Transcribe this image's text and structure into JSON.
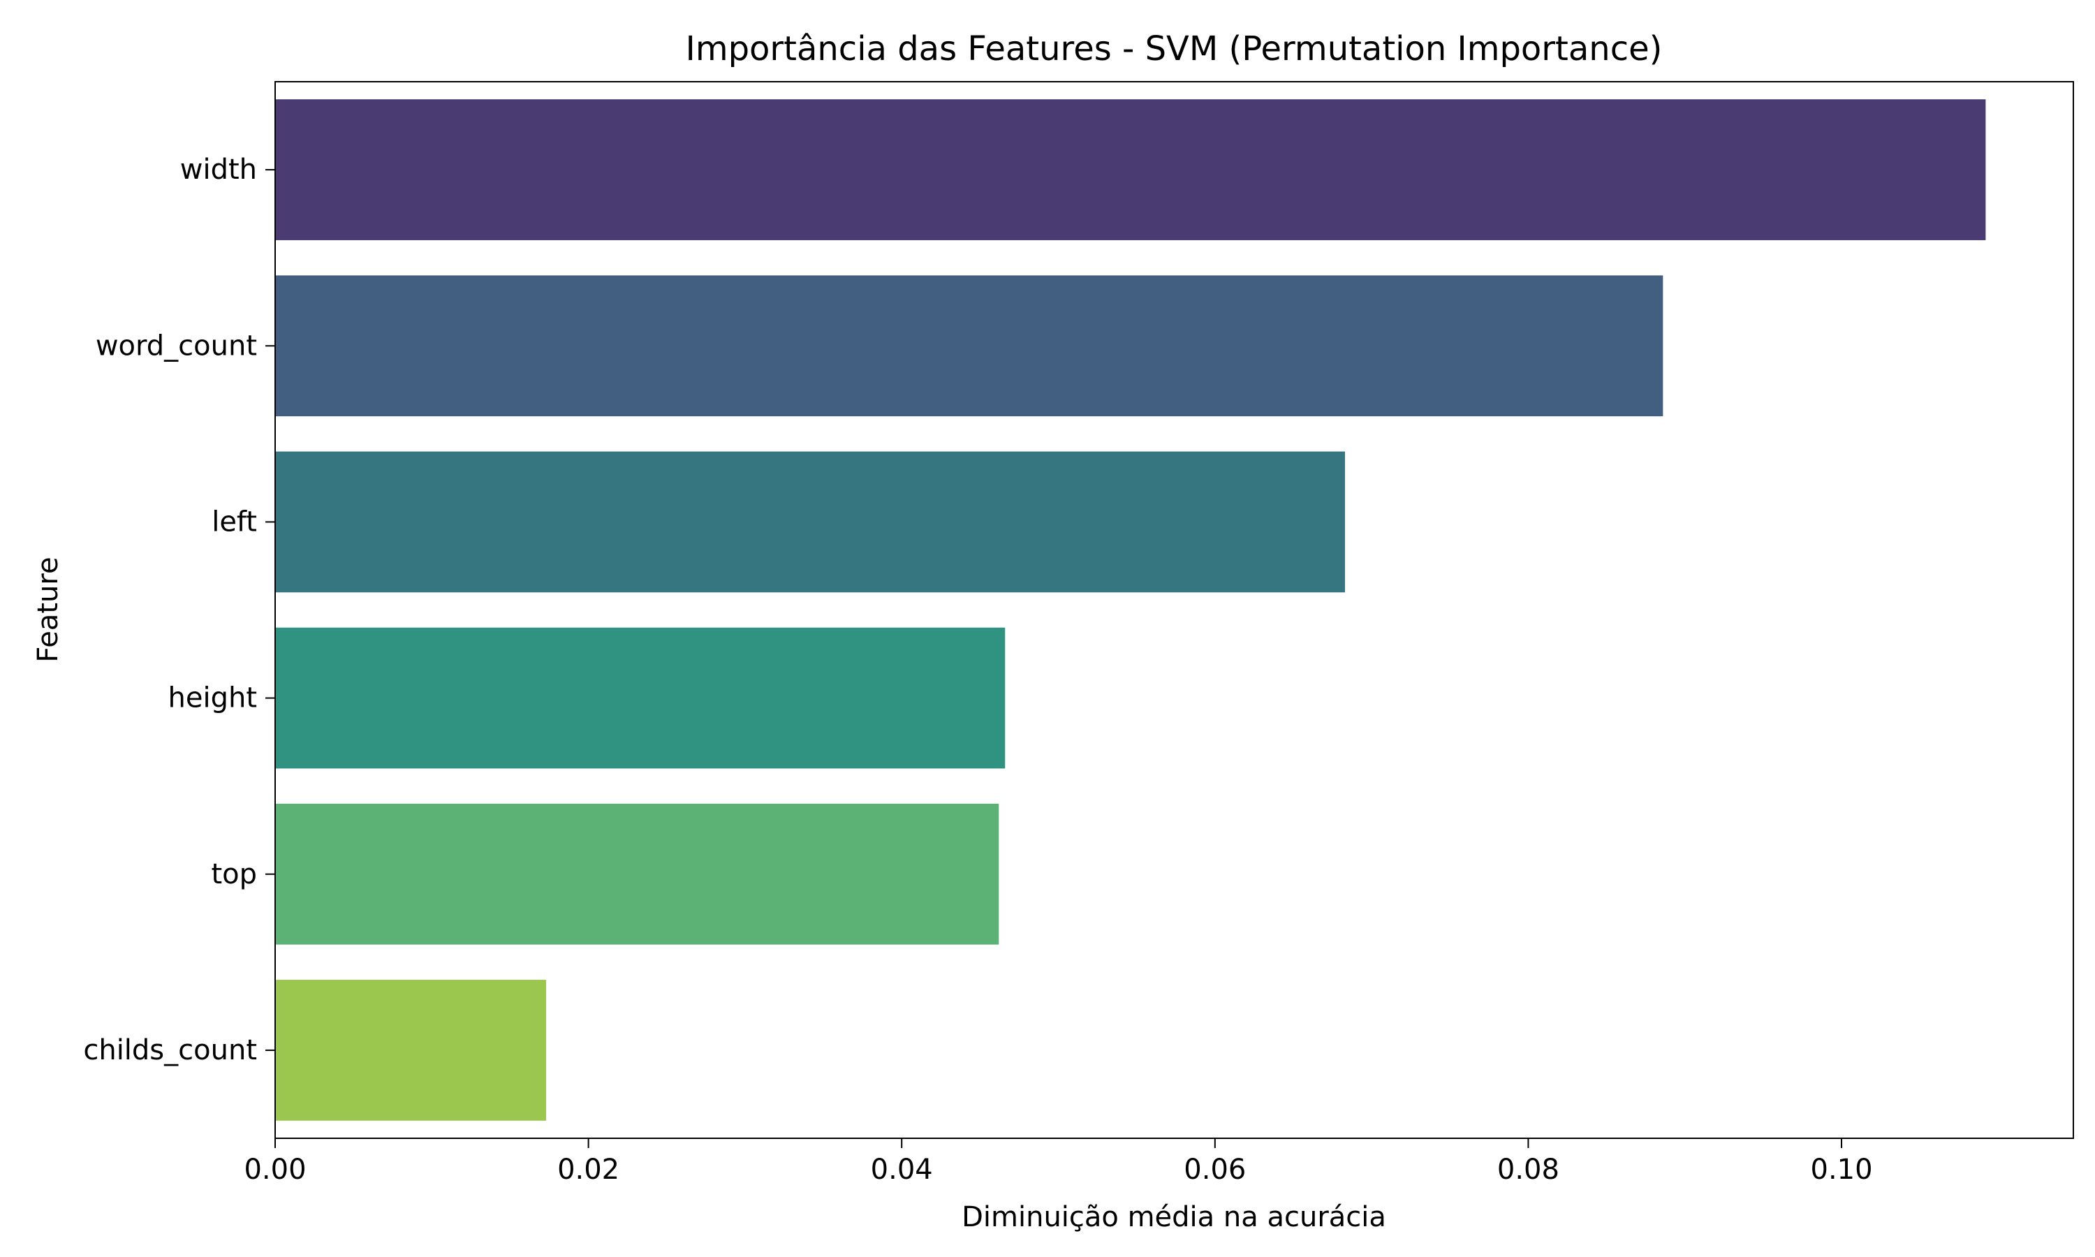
{
  "chart_data": {
    "type": "bar",
    "orientation": "horizontal",
    "title": "Importância das Features - SVM (Permutation Importance)",
    "xlabel": "Diminuição média na acurácia",
    "ylabel": "Feature",
    "categories": [
      "width",
      "word_count",
      "left",
      "height",
      "top",
      "childs_count"
    ],
    "values": [
      0.1092,
      0.0886,
      0.0683,
      0.0466,
      0.0462,
      0.0173
    ],
    "colors": [
      "#4a3b73",
      "#425f82",
      "#357680",
      "#309280",
      "#5bb274",
      "#9cc74f"
    ],
    "xlim": [
      0,
      0.1148
    ],
    "xticks": [
      0.0,
      0.02,
      0.04,
      0.06,
      0.08,
      0.1
    ],
    "xtick_labels": [
      "0.00",
      "0.02",
      "0.04",
      "0.06",
      "0.08",
      "0.10"
    ],
    "grid": false,
    "legend": "none"
  }
}
